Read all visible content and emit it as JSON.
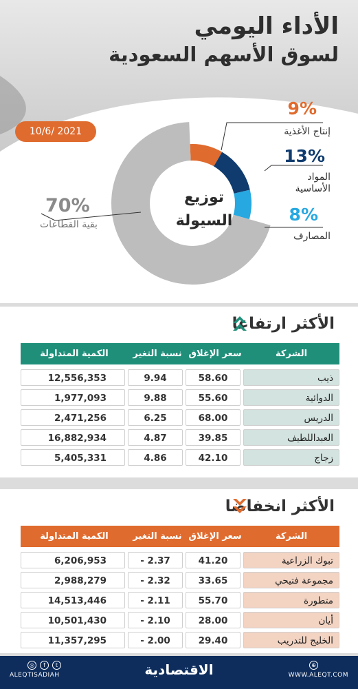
{
  "header": {
    "title": "الأداء اليومي",
    "subtitle": "لسوق الأسهم السعودية",
    "date": "10/6/ 2021"
  },
  "liquidity": {
    "center_label_line1": "توزيع",
    "center_label_line2": "السيولة",
    "segments": [
      {
        "pct": "9%",
        "label": "إنتاج الأغذية",
        "value": 9,
        "color": "#e06b2e"
      },
      {
        "pct": "13%",
        "label_line1": "المواد",
        "label_line2": "الأساسية",
        "value": 13,
        "color": "#0f3b6e"
      },
      {
        "pct": "8%",
        "label": "المصارف",
        "value": 8,
        "color": "#27a8e0"
      },
      {
        "pct": "70%",
        "label": "بقية القطاعات",
        "value": 70,
        "color": "#bdbdbd"
      }
    ]
  },
  "gainers": {
    "title": "الأكثر ارتفاعا",
    "header_color": "#1f8f7a",
    "columns": [
      "الشركة",
      "سعر الإغلاق",
      "نسبة التغير %",
      "الكمية المتداولة"
    ],
    "rows": [
      {
        "company": "ذيب",
        "close": "58.60",
        "change": "9.94",
        "volume": "12,556,353"
      },
      {
        "company": "الدوائية",
        "close": "55.60",
        "change": "9.88",
        "volume": "1,977,093"
      },
      {
        "company": "الدريس",
        "close": "68.00",
        "change": "6.25",
        "volume": "2,471,256"
      },
      {
        "company": "العبداللطيف",
        "close": "39.85",
        "change": "4.87",
        "volume": "16,882,934"
      },
      {
        "company": "زجاج",
        "close": "42.10",
        "change": "4.86",
        "volume": "5,405,331"
      }
    ]
  },
  "losers": {
    "title": "الأكثر انخفاضا",
    "header_color": "#e06b2e",
    "columns": [
      "الشركة",
      "سعر الإغلاق",
      "نسبة التغير %",
      "الكمية المتداولة"
    ],
    "rows": [
      {
        "company": "تبوك الزراعية",
        "close": "41.20",
        "change": "- 2.37",
        "volume": "6,206,953"
      },
      {
        "company": "مجموعة فتيحي",
        "close": "33.65",
        "change": "- 2.32",
        "volume": "2,988,279"
      },
      {
        "company": "متطورة",
        "close": "55.70",
        "change": "- 2.11",
        "volume": "14,513,446"
      },
      {
        "company": "أيان",
        "close": "28.00",
        "change": "- 2.10",
        "volume": "10,501,430"
      },
      {
        "company": "الخليج للتدريب",
        "close": "29.40",
        "change": "- 2.00",
        "volume": "11,357,295"
      }
    ]
  },
  "footer": {
    "handle": "ALEQTISADIAH",
    "logo": "الاقتصادية",
    "website": "WWW.ALEQT.COM"
  }
}
